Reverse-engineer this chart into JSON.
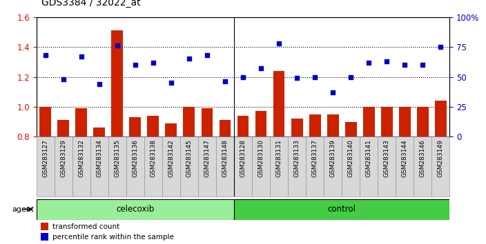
{
  "title": "GDS3384 / 32022_at",
  "categories": [
    "GSM283127",
    "GSM283129",
    "GSM283132",
    "GSM283134",
    "GSM283135",
    "GSM283136",
    "GSM283138",
    "GSM283142",
    "GSM283145",
    "GSM283147",
    "GSM283148",
    "GSM283128",
    "GSM283130",
    "GSM283131",
    "GSM283133",
    "GSM283137",
    "GSM283139",
    "GSM283140",
    "GSM283141",
    "GSM283143",
    "GSM283144",
    "GSM283146",
    "GSM283149"
  ],
  "bar_values": [
    1.0,
    0.91,
    0.99,
    0.86,
    1.51,
    0.93,
    0.94,
    0.89,
    1.0,
    0.99,
    0.91,
    0.94,
    0.97,
    1.24,
    0.92,
    0.95,
    0.95,
    0.9,
    1.0,
    1.0,
    1.0,
    1.0,
    1.04
  ],
  "dot_values": [
    68,
    48,
    67,
    44,
    76,
    60,
    62,
    45,
    65,
    68,
    46,
    50,
    57,
    78,
    49,
    50,
    37,
    50,
    62,
    63,
    60,
    60,
    75
  ],
  "celecoxib_count": 11,
  "control_count": 12,
  "bar_color": "#cc2200",
  "dot_color": "#0000cc",
  "celecoxib_color": "#99ee99",
  "control_color": "#44cc44",
  "background_color": "#ffffff",
  "ylim_left": [
    0.8,
    1.6
  ],
  "ylim_right": [
    0,
    100
  ],
  "yticks_left": [
    0.8,
    1.0,
    1.2,
    1.4,
    1.6
  ],
  "yticks_right": [
    0,
    25,
    50,
    75,
    100
  ],
  "ytick_labels_right": [
    "0",
    "25",
    "50",
    "75",
    "100%"
  ],
  "agent_label": "agent",
  "celecoxib_label": "celecoxib",
  "control_label": "control",
  "legend_bar_label": "transformed count",
  "legend_dot_label": "percentile rank within the sample"
}
